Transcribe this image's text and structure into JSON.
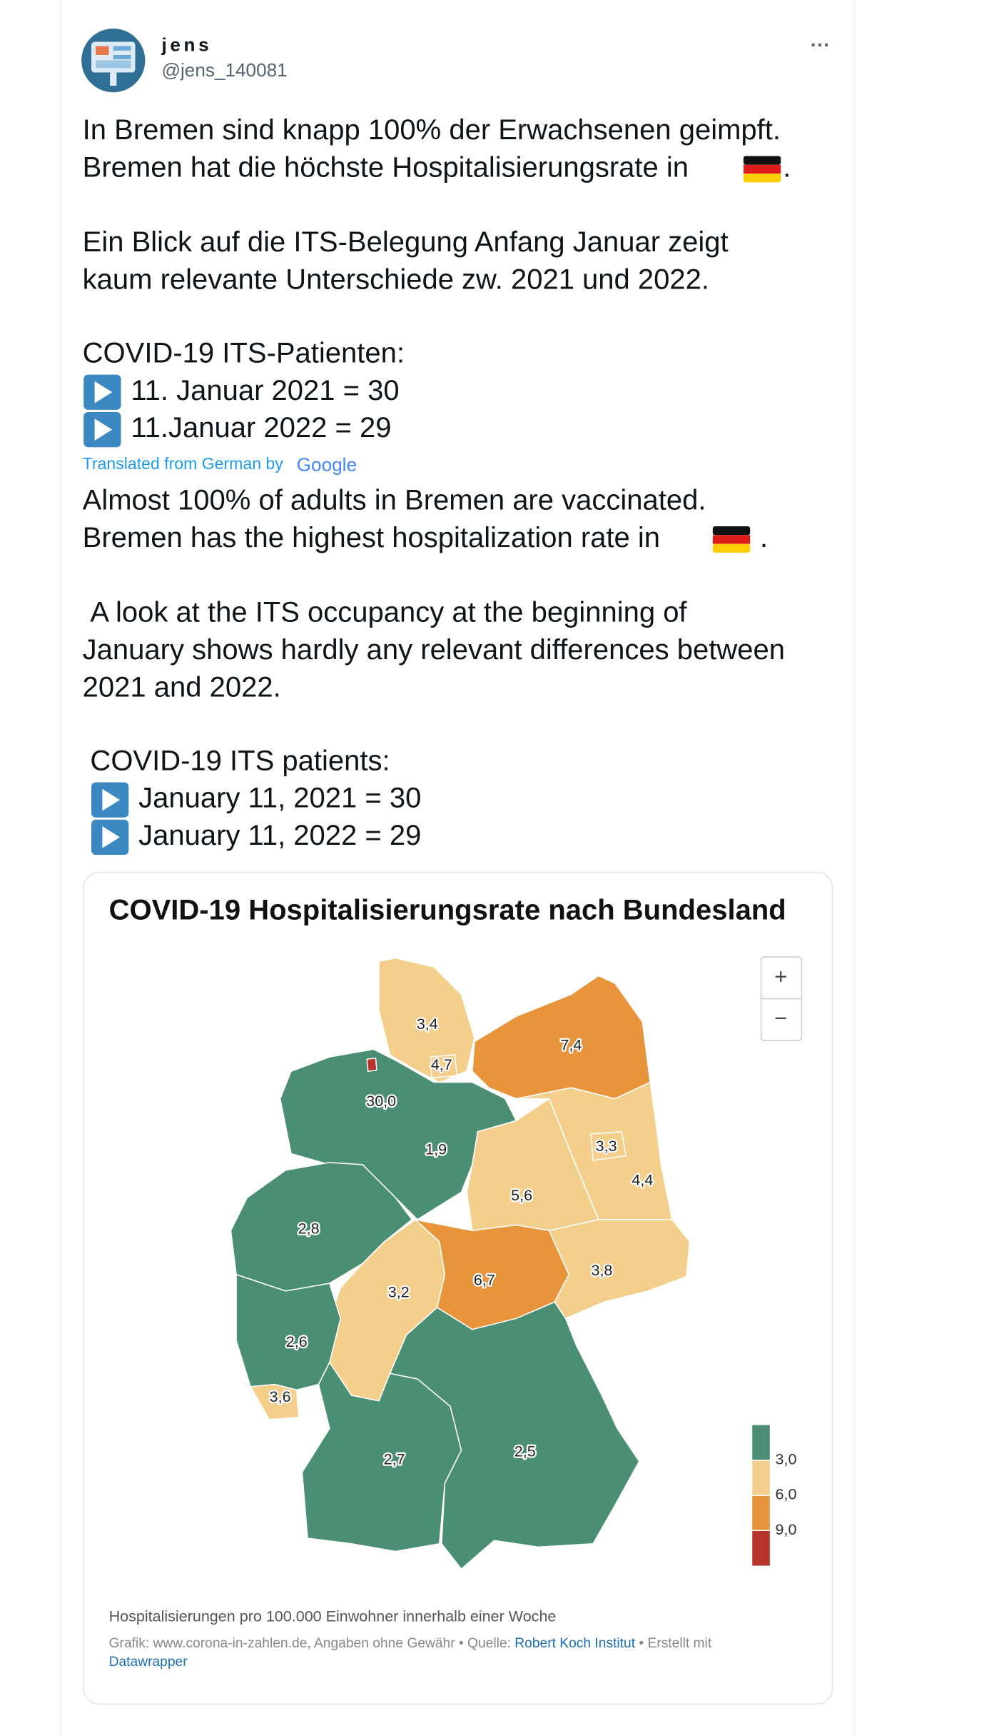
{
  "tweet": {
    "author_name": "jens",
    "handle": "@jens_140081",
    "more": "···",
    "original": {
      "line1": "In Bremen sind knapp 100% der Erwachsenen geimpft.",
      "line2": "Bremen hat die höchste Hospitalisierungsrate in",
      "line2_end": ".",
      "line3": "Ein Blick auf die ITS-Belegung Anfang Januar zeigt",
      "line4": "kaum relevante Unterschiede zw. 2021 und 2022.",
      "line5": "COVID-19 ITS-Patienten:",
      "line6": "11. Januar 2021 = 30",
      "line7": "11.Januar 2022 = 29"
    },
    "translation_note": "Translated from German by",
    "translation_brand": "Google",
    "translated": {
      "line1": "Almost 100% of adults in Bremen are vaccinated.",
      "line2": "Bremen has the highest hospitalization rate in",
      "line2_end": ".",
      "line3": "A look at the ITS occupancy at the beginning of",
      "line4": "January shows hardly any relevant differences between",
      "line5": "2021 and 2022.",
      "line6": "COVID-19 ITS patients:",
      "line7": "January 11, 2021 = 30",
      "line8": "January 11, 2022 = 29"
    }
  },
  "chart_data": {
    "type": "choropleth",
    "title": "COVID-19 Hospitalisierungsrate nach Bundesland",
    "values": [
      3.4,
      7.4,
      1.9,
      4.4,
      5.6,
      2.8,
      3.2,
      6.7,
      3.8,
      2.6,
      3.6,
      2.7,
      2.5,
      4.7,
      3.3,
      30.0
    ],
    "value_labels": [
      "3,4",
      "7,4",
      "1,9",
      "4,4",
      "5,6",
      "2,8",
      "3,2",
      "6,7",
      "3,8",
      "2,6",
      "3,6",
      "2,7",
      "2,5",
      "4,7",
      "3,3",
      "30,0"
    ],
    "legend": {
      "lim": [
        0,
        12
      ],
      "ticks": [
        {
          "value": 3,
          "label": "3,0"
        },
        {
          "value": 6,
          "label": "6,0"
        },
        {
          "value": 9,
          "label": "9,0"
        }
      ],
      "colors": [
        "#4a8f74",
        "#f4cf8c",
        "#e8943a",
        "#b7352d"
      ]
    },
    "zoom_in": "+",
    "zoom_out": "−",
    "note": "Hospitalisierungen pro 100.000 Einwohner innerhalb einer Woche",
    "source_prefix": "Grafik: www.corona-in-zahlen.de, Angaben ohne Gewähr • Quelle:",
    "source_link": "Robert Koch Institut",
    "source_suffix": "• Erstellt mit",
    "tool_link": "Datawrapper"
  }
}
